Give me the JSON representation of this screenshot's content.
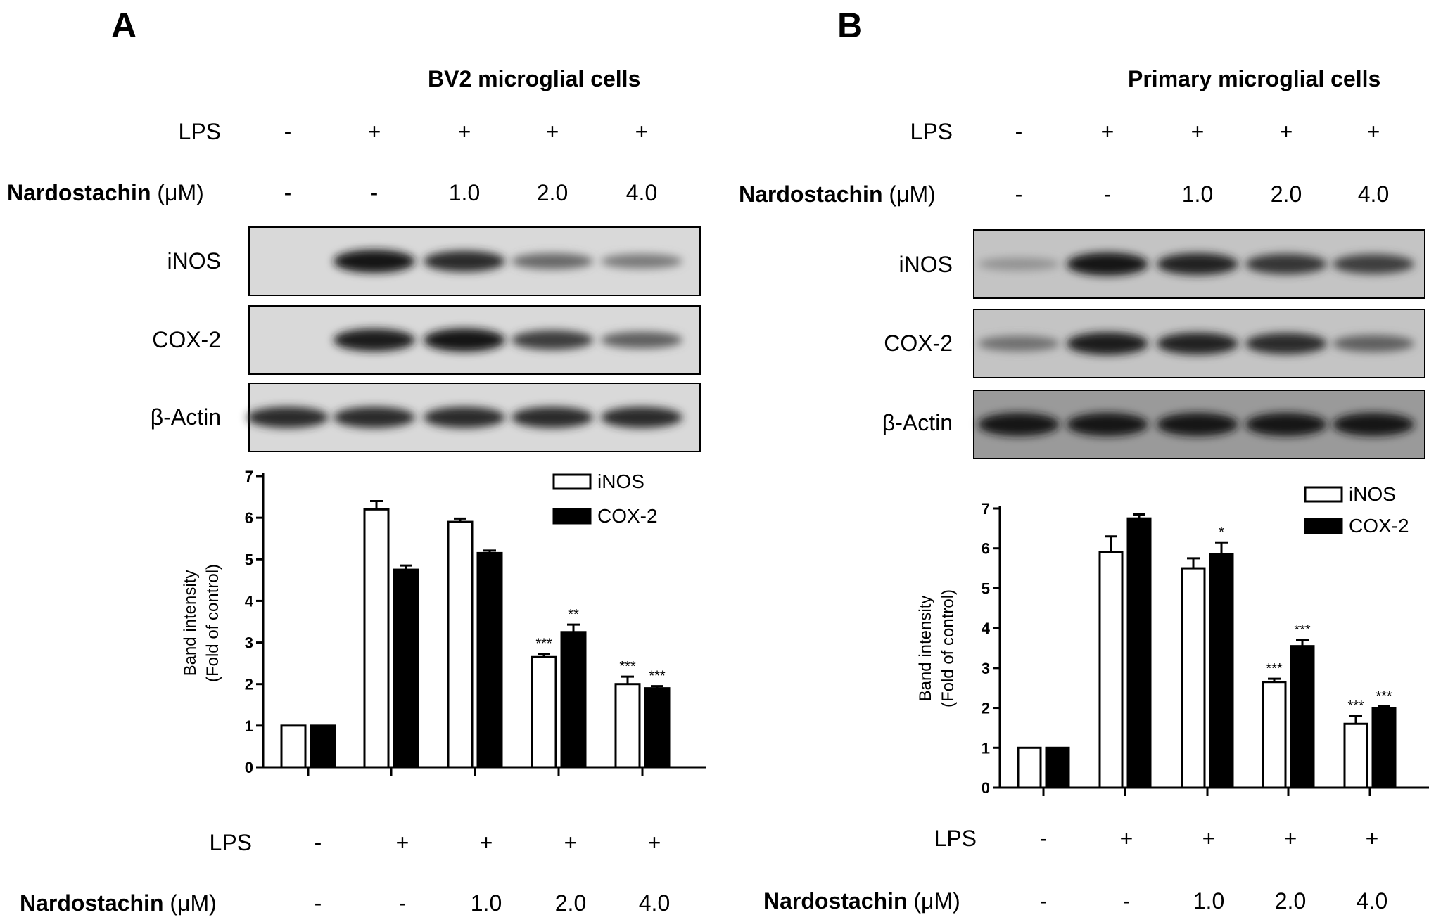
{
  "panels": [
    {
      "letter": "A",
      "title": "BV2 microglial  cells",
      "lps_label": "LPS",
      "lps": [
        "-",
        "+",
        "+",
        "+",
        "+"
      ],
      "nardo_label": "Nardostachin",
      "nardo_unit": " (μM)",
      "nardo": [
        "-",
        "-",
        "1.0",
        "2.0",
        "4.0"
      ],
      "blots": [
        "iNOS",
        "COX-2",
        "β-Actin"
      ],
      "blot_intensity": {
        "iNOS": [
          0.0,
          0.95,
          0.8,
          0.45,
          0.35
        ],
        "COX-2": [
          0.0,
          0.9,
          0.95,
          0.7,
          0.5
        ],
        "β-Actin": [
          0.8,
          0.8,
          0.8,
          0.8,
          0.8
        ]
      }
    },
    {
      "letter": "B",
      "title": "Primary microglial  cells",
      "lps_label": "LPS",
      "lps": [
        "-",
        "+",
        "+",
        "+",
        "+"
      ],
      "nardo_label": "Nardostachin",
      "nardo_unit": " (μM)",
      "nardo": [
        "-",
        "-",
        "1.0",
        "2.0",
        "4.0"
      ],
      "blots": [
        "iNOS",
        "COX-2",
        "β-Actin"
      ],
      "blot_intensity": {
        "iNOS": [
          0.2,
          0.95,
          0.85,
          0.75,
          0.7
        ],
        "COX-2": [
          0.4,
          0.9,
          0.85,
          0.8,
          0.5
        ],
        "β-Actin": [
          0.95,
          0.95,
          0.95,
          0.95,
          0.95
        ]
      }
    }
  ],
  "chart_data": [
    {
      "type": "bar",
      "panel": "A",
      "ylabel_line1": "Band intensity",
      "ylabel_line2": "(Fold of control)",
      "ylim": [
        0,
        7
      ],
      "yticks": [
        "0",
        "1",
        "2",
        "3",
        "4",
        "5",
        "6",
        "7"
      ],
      "legend_position": "top-right",
      "colors": {
        "iNOS": "#ffffff",
        "COX-2": "#000000"
      },
      "series": [
        {
          "name": "iNOS",
          "values": [
            1.0,
            6.2,
            5.9,
            2.65,
            2.0
          ],
          "errors": [
            0,
            0.2,
            0.08,
            0.08,
            0.18
          ],
          "stars": [
            "",
            "",
            "",
            "***",
            "***"
          ]
        },
        {
          "name": "COX-2",
          "values": [
            1.0,
            4.75,
            5.15,
            3.25,
            1.9
          ],
          "errors": [
            0,
            0.1,
            0.06,
            0.18,
            0.05
          ],
          "stars": [
            "",
            "",
            "",
            "**",
            "***"
          ]
        }
      ],
      "lps_label": "LPS",
      "lps": [
        "-",
        "+",
        "+",
        "+",
        "+"
      ],
      "nardo_label": "Nardostachin",
      "nardo_unit": " (μM)",
      "nardo": [
        "-",
        "-",
        "1.0",
        "2.0",
        "4.0"
      ]
    },
    {
      "type": "bar",
      "panel": "B",
      "ylabel_line1": "Band intensity",
      "ylabel_line2": "(Fold of control)",
      "ylim": [
        0,
        7
      ],
      "yticks": [
        "0",
        "1",
        "2",
        "3",
        "4",
        "5",
        "6",
        "7"
      ],
      "legend_position": "top-right",
      "colors": {
        "iNOS": "#ffffff",
        "COX-2": "#000000"
      },
      "series": [
        {
          "name": "iNOS",
          "values": [
            1.0,
            5.9,
            5.5,
            2.65,
            1.6
          ],
          "errors": [
            0,
            0.4,
            0.25,
            0.08,
            0.2
          ],
          "stars": [
            "",
            "",
            "",
            "***",
            "***"
          ]
        },
        {
          "name": "COX-2",
          "values": [
            1.0,
            6.75,
            5.85,
            3.55,
            2.0
          ],
          "errors": [
            0,
            0.1,
            0.3,
            0.15,
            0.04
          ],
          "stars": [
            "",
            "",
            "*",
            "***",
            "***"
          ]
        }
      ],
      "lps_label": "LPS",
      "lps": [
        "-",
        "+",
        "+",
        "+",
        "+"
      ],
      "nardo_label": "Nardostachin",
      "nardo_unit": " (μM)",
      "nardo": [
        "-",
        "-",
        "1.0",
        "2.0",
        "4.0"
      ]
    }
  ]
}
